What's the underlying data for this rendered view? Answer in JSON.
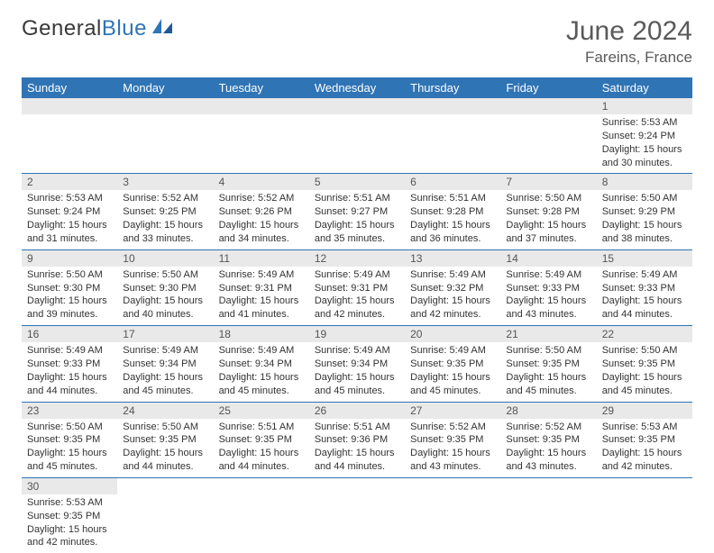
{
  "logo": {
    "part1": "General",
    "part2": "Blue"
  },
  "title": "June 2024",
  "location": "Fareins, France",
  "colors": {
    "header_bg": "#2f74b5",
    "header_fg": "#ffffff",
    "daynum_bg": "#e9e9e9",
    "border": "#2f74b5",
    "logo_dark": "#3a3a3a",
    "logo_blue": "#2f74b5"
  },
  "weekdays": [
    "Sunday",
    "Monday",
    "Tuesday",
    "Wednesday",
    "Thursday",
    "Friday",
    "Saturday"
  ],
  "weeks": [
    [
      null,
      null,
      null,
      null,
      null,
      null,
      {
        "n": "1",
        "sr": "Sunrise: 5:53 AM",
        "ss": "Sunset: 9:24 PM",
        "d1": "Daylight: 15 hours",
        "d2": "and 30 minutes."
      }
    ],
    [
      {
        "n": "2",
        "sr": "Sunrise: 5:53 AM",
        "ss": "Sunset: 9:24 PM",
        "d1": "Daylight: 15 hours",
        "d2": "and 31 minutes."
      },
      {
        "n": "3",
        "sr": "Sunrise: 5:52 AM",
        "ss": "Sunset: 9:25 PM",
        "d1": "Daylight: 15 hours",
        "d2": "and 33 minutes."
      },
      {
        "n": "4",
        "sr": "Sunrise: 5:52 AM",
        "ss": "Sunset: 9:26 PM",
        "d1": "Daylight: 15 hours",
        "d2": "and 34 minutes."
      },
      {
        "n": "5",
        "sr": "Sunrise: 5:51 AM",
        "ss": "Sunset: 9:27 PM",
        "d1": "Daylight: 15 hours",
        "d2": "and 35 minutes."
      },
      {
        "n": "6",
        "sr": "Sunrise: 5:51 AM",
        "ss": "Sunset: 9:28 PM",
        "d1": "Daylight: 15 hours",
        "d2": "and 36 minutes."
      },
      {
        "n": "7",
        "sr": "Sunrise: 5:50 AM",
        "ss": "Sunset: 9:28 PM",
        "d1": "Daylight: 15 hours",
        "d2": "and 37 minutes."
      },
      {
        "n": "8",
        "sr": "Sunrise: 5:50 AM",
        "ss": "Sunset: 9:29 PM",
        "d1": "Daylight: 15 hours",
        "d2": "and 38 minutes."
      }
    ],
    [
      {
        "n": "9",
        "sr": "Sunrise: 5:50 AM",
        "ss": "Sunset: 9:30 PM",
        "d1": "Daylight: 15 hours",
        "d2": "and 39 minutes."
      },
      {
        "n": "10",
        "sr": "Sunrise: 5:50 AM",
        "ss": "Sunset: 9:30 PM",
        "d1": "Daylight: 15 hours",
        "d2": "and 40 minutes."
      },
      {
        "n": "11",
        "sr": "Sunrise: 5:49 AM",
        "ss": "Sunset: 9:31 PM",
        "d1": "Daylight: 15 hours",
        "d2": "and 41 minutes."
      },
      {
        "n": "12",
        "sr": "Sunrise: 5:49 AM",
        "ss": "Sunset: 9:31 PM",
        "d1": "Daylight: 15 hours",
        "d2": "and 42 minutes."
      },
      {
        "n": "13",
        "sr": "Sunrise: 5:49 AM",
        "ss": "Sunset: 9:32 PM",
        "d1": "Daylight: 15 hours",
        "d2": "and 42 minutes."
      },
      {
        "n": "14",
        "sr": "Sunrise: 5:49 AM",
        "ss": "Sunset: 9:33 PM",
        "d1": "Daylight: 15 hours",
        "d2": "and 43 minutes."
      },
      {
        "n": "15",
        "sr": "Sunrise: 5:49 AM",
        "ss": "Sunset: 9:33 PM",
        "d1": "Daylight: 15 hours",
        "d2": "and 44 minutes."
      }
    ],
    [
      {
        "n": "16",
        "sr": "Sunrise: 5:49 AM",
        "ss": "Sunset: 9:33 PM",
        "d1": "Daylight: 15 hours",
        "d2": "and 44 minutes."
      },
      {
        "n": "17",
        "sr": "Sunrise: 5:49 AM",
        "ss": "Sunset: 9:34 PM",
        "d1": "Daylight: 15 hours",
        "d2": "and 45 minutes."
      },
      {
        "n": "18",
        "sr": "Sunrise: 5:49 AM",
        "ss": "Sunset: 9:34 PM",
        "d1": "Daylight: 15 hours",
        "d2": "and 45 minutes."
      },
      {
        "n": "19",
        "sr": "Sunrise: 5:49 AM",
        "ss": "Sunset: 9:34 PM",
        "d1": "Daylight: 15 hours",
        "d2": "and 45 minutes."
      },
      {
        "n": "20",
        "sr": "Sunrise: 5:49 AM",
        "ss": "Sunset: 9:35 PM",
        "d1": "Daylight: 15 hours",
        "d2": "and 45 minutes."
      },
      {
        "n": "21",
        "sr": "Sunrise: 5:50 AM",
        "ss": "Sunset: 9:35 PM",
        "d1": "Daylight: 15 hours",
        "d2": "and 45 minutes."
      },
      {
        "n": "22",
        "sr": "Sunrise: 5:50 AM",
        "ss": "Sunset: 9:35 PM",
        "d1": "Daylight: 15 hours",
        "d2": "and 45 minutes."
      }
    ],
    [
      {
        "n": "23",
        "sr": "Sunrise: 5:50 AM",
        "ss": "Sunset: 9:35 PM",
        "d1": "Daylight: 15 hours",
        "d2": "and 45 minutes."
      },
      {
        "n": "24",
        "sr": "Sunrise: 5:50 AM",
        "ss": "Sunset: 9:35 PM",
        "d1": "Daylight: 15 hours",
        "d2": "and 44 minutes."
      },
      {
        "n": "25",
        "sr": "Sunrise: 5:51 AM",
        "ss": "Sunset: 9:35 PM",
        "d1": "Daylight: 15 hours",
        "d2": "and 44 minutes."
      },
      {
        "n": "26",
        "sr": "Sunrise: 5:51 AM",
        "ss": "Sunset: 9:36 PM",
        "d1": "Daylight: 15 hours",
        "d2": "and 44 minutes."
      },
      {
        "n": "27",
        "sr": "Sunrise: 5:52 AM",
        "ss": "Sunset: 9:35 PM",
        "d1": "Daylight: 15 hours",
        "d2": "and 43 minutes."
      },
      {
        "n": "28",
        "sr": "Sunrise: 5:52 AM",
        "ss": "Sunset: 9:35 PM",
        "d1": "Daylight: 15 hours",
        "d2": "and 43 minutes."
      },
      {
        "n": "29",
        "sr": "Sunrise: 5:53 AM",
        "ss": "Sunset: 9:35 PM",
        "d1": "Daylight: 15 hours",
        "d2": "and 42 minutes."
      }
    ],
    [
      {
        "n": "30",
        "sr": "Sunrise: 5:53 AM",
        "ss": "Sunset: 9:35 PM",
        "d1": "Daylight: 15 hours",
        "d2": "and 42 minutes."
      },
      null,
      null,
      null,
      null,
      null,
      null
    ]
  ]
}
